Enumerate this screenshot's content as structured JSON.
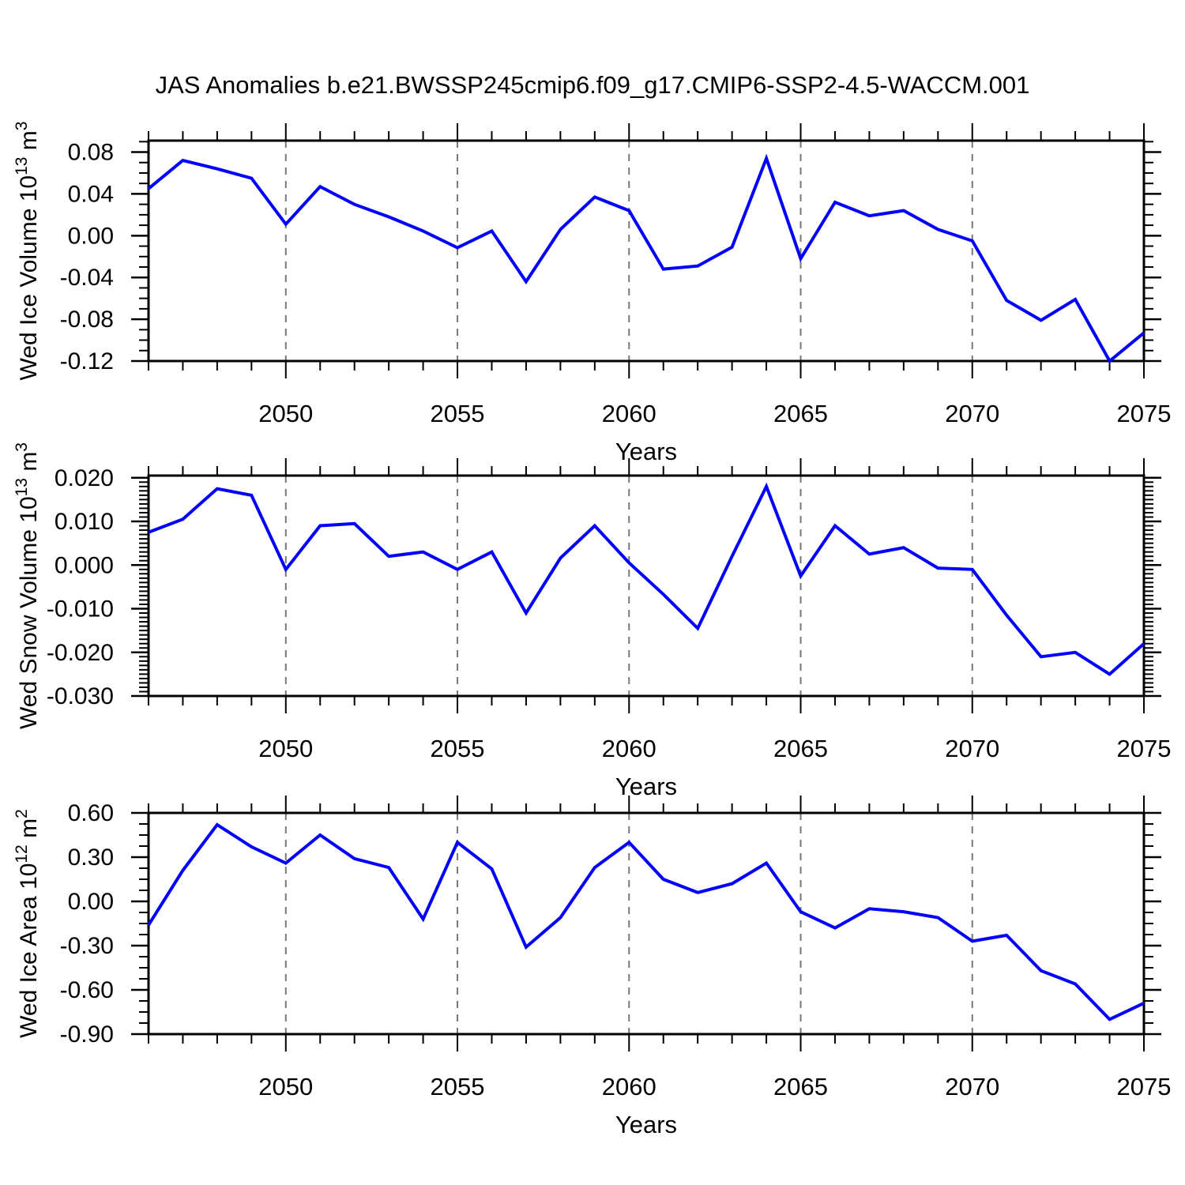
{
  "title": "JAS Anomalies b.e21.BWSSP245cmip6.f09_g17.CMIP6-SSP2-4.5-WACCM.001",
  "line_color": "#0000ff",
  "gridline_color": "#777777",
  "axis_color": "#000000",
  "chart_data": [
    {
      "type": "line",
      "name": "wed-ice-volume",
      "ylabel": {
        "base": "Wed Ice Volume 10",
        "exp": "13",
        "unit": " m",
        "unit_exp": "3"
      },
      "xlabel": "Years",
      "x": [
        2046,
        2047,
        2048,
        2049,
        2050,
        2051,
        2052,
        2053,
        2054,
        2055,
        2056,
        2057,
        2058,
        2059,
        2060,
        2061,
        2062,
        2063,
        2064,
        2065,
        2066,
        2067,
        2068,
        2069,
        2070,
        2071,
        2072,
        2073,
        2074,
        2075
      ],
      "values": [
        0.045,
        0.072,
        0.064,
        0.055,
        0.011,
        0.047,
        0.03,
        0.018,
        0.0045,
        -0.0115,
        0.0045,
        -0.044,
        0.006,
        0.037,
        0.024,
        -0.032,
        -0.029,
        -0.011,
        0.074,
        -0.022,
        0.032,
        0.019,
        0.024,
        0.006,
        -0.005,
        -0.062,
        -0.081,
        -0.061,
        -0.12,
        -0.093
      ],
      "ylim": [
        -0.12,
        0.091
      ],
      "yticks": [
        {
          "v": 0.08,
          "label": "0.08"
        },
        {
          "v": 0.04,
          "label": "0.04"
        },
        {
          "v": 0.0,
          "label": "0.00"
        },
        {
          "v": -0.04,
          "label": "-0.04"
        },
        {
          "v": -0.08,
          "label": "-0.08"
        },
        {
          "v": -0.12,
          "label": "-0.12"
        }
      ],
      "y_minor_step": 0.01,
      "xticks": [
        {
          "v": 2050,
          "label": "2050"
        },
        {
          "v": 2055,
          "label": "2055"
        },
        {
          "v": 2060,
          "label": "2060"
        },
        {
          "v": 2065,
          "label": "2065"
        },
        {
          "v": 2070,
          "label": "2070"
        },
        {
          "v": 2075,
          "label": "2075"
        }
      ],
      "x_minor_step": 1,
      "gridline_years": [
        2050,
        2055,
        2060,
        2065,
        2070
      ]
    },
    {
      "type": "line",
      "name": "wed-snow-volume",
      "ylabel": {
        "base": "Wed Snow Volume 10",
        "exp": "13",
        "unit": " m",
        "unit_exp": "3"
      },
      "xlabel": "Years",
      "x": [
        2046,
        2047,
        2048,
        2049,
        2050,
        2051,
        2052,
        2053,
        2054,
        2055,
        2056,
        2057,
        2058,
        2059,
        2060,
        2061,
        2062,
        2063,
        2064,
        2065,
        2066,
        2067,
        2068,
        2069,
        2070,
        2071,
        2072,
        2073,
        2074,
        2075
      ],
      "values": [
        0.0075,
        0.0105,
        0.0175,
        0.016,
        -0.001,
        0.009,
        0.0095,
        0.002,
        0.003,
        -0.001,
        0.003,
        -0.011,
        0.0016,
        0.009,
        0.0005,
        -0.0067,
        -0.0145,
        0.002,
        0.018,
        -0.0025,
        0.009,
        0.0025,
        0.004,
        -0.0007,
        -0.001,
        -0.0115,
        -0.021,
        -0.02,
        -0.025,
        -0.018
      ],
      "ylim": [
        -0.03,
        0.0205
      ],
      "yticks": [
        {
          "v": 0.02,
          "label": "0.020"
        },
        {
          "v": 0.01,
          "label": "0.010"
        },
        {
          "v": 0.0,
          "label": "0.000"
        },
        {
          "v": -0.01,
          "label": "-0.010"
        },
        {
          "v": -0.02,
          "label": "-0.020"
        },
        {
          "v": -0.03,
          "label": "-0.030"
        }
      ],
      "y_minor_step": 0.001,
      "xticks": [
        {
          "v": 2050,
          "label": "2050"
        },
        {
          "v": 2055,
          "label": "2055"
        },
        {
          "v": 2060,
          "label": "2060"
        },
        {
          "v": 2065,
          "label": "2065"
        },
        {
          "v": 2070,
          "label": "2070"
        },
        {
          "v": 2075,
          "label": "2075"
        }
      ],
      "x_minor_step": 1,
      "gridline_years": [
        2050,
        2055,
        2060,
        2065,
        2070
      ]
    },
    {
      "type": "line",
      "name": "wed-ice-area",
      "ylabel": {
        "base": "Wed Ice Area 10",
        "exp": "12",
        "unit": " m",
        "unit_exp": "2"
      },
      "xlabel": "Years",
      "x": [
        2046,
        2047,
        2048,
        2049,
        2050,
        2051,
        2052,
        2053,
        2054,
        2055,
        2056,
        2057,
        2058,
        2059,
        2060,
        2061,
        2062,
        2063,
        2064,
        2065,
        2066,
        2067,
        2068,
        2069,
        2070,
        2071,
        2072,
        2073,
        2074,
        2075
      ],
      "values": [
        -0.16,
        0.21,
        0.52,
        0.37,
        0.26,
        0.45,
        0.29,
        0.23,
        -0.12,
        0.4,
        0.22,
        -0.31,
        -0.11,
        0.23,
        0.4,
        0.15,
        0.06,
        0.12,
        0.26,
        -0.07,
        -0.18,
        -0.05,
        -0.07,
        -0.11,
        -0.27,
        -0.23,
        -0.47,
        -0.56,
        -0.8,
        -0.69
      ],
      "ylim": [
        -0.9,
        0.6
      ],
      "yticks": [
        {
          "v": 0.6,
          "label": "0.60"
        },
        {
          "v": 0.3,
          "label": "0.30"
        },
        {
          "v": 0.0,
          "label": "0.00"
        },
        {
          "v": -0.3,
          "label": "-0.30"
        },
        {
          "v": -0.6,
          "label": "-0.60"
        },
        {
          "v": -0.9,
          "label": "-0.90"
        }
      ],
      "y_minor_step": 0.075,
      "xticks": [
        {
          "v": 2050,
          "label": "2050"
        },
        {
          "v": 2055,
          "label": "2055"
        },
        {
          "v": 2060,
          "label": "2060"
        },
        {
          "v": 2065,
          "label": "2065"
        },
        {
          "v": 2070,
          "label": "2070"
        },
        {
          "v": 2075,
          "label": "2075"
        }
      ],
      "x_minor_step": 1,
      "gridline_years": [
        2050,
        2055,
        2060,
        2065,
        2070
      ]
    }
  ]
}
